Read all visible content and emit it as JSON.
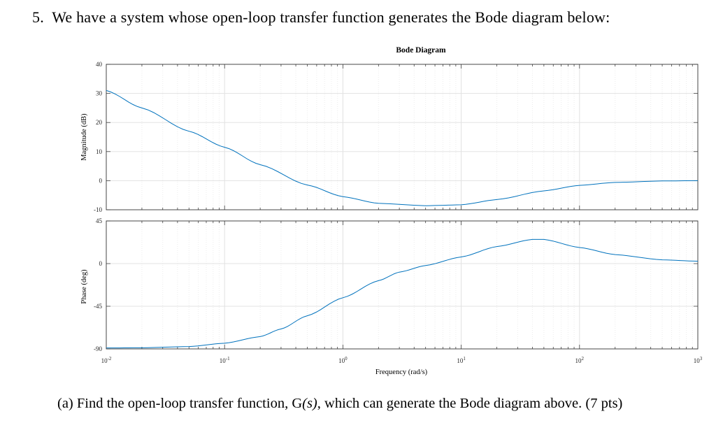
{
  "question": {
    "number": "5.",
    "text": "We have a system whose open-loop transfer function generates the Bode diagram below:"
  },
  "part_a": {
    "label": "(a)",
    "text_before": "Find the open-loop transfer function, G",
    "func_arg": "(s)",
    "text_after": ", which can generate the Bode diagram above.",
    "points": "(7 pts)"
  },
  "chart_data": {
    "type": "line",
    "title": "Bode Diagram",
    "xlabel": "Frequency (rad/s)",
    "xscale": "log",
    "xlim": [
      0.01,
      1000
    ],
    "x_tick_labels": [
      {
        "base": "10",
        "exp": "-2"
      },
      {
        "base": "10",
        "exp": "-1"
      },
      {
        "base": "10",
        "exp": "0"
      },
      {
        "base": "10",
        "exp": "1"
      },
      {
        "base": "10",
        "exp": "2"
      },
      {
        "base": "10",
        "exp": "3"
      }
    ],
    "grid": true,
    "line_color": "#0072BD",
    "magnitude": {
      "ylabel": "Magnitude (dB)",
      "ylim": [
        -10,
        40
      ],
      "yticks": [
        "40",
        "30",
        "20",
        "10",
        "0",
        "-10"
      ],
      "x": [
        0.01,
        0.02,
        0.05,
        0.1,
        0.2,
        0.5,
        1,
        2,
        5,
        10,
        20,
        50,
        100,
        200,
        500,
        1000
      ],
      "y": [
        31,
        25,
        17,
        11.5,
        5.5,
        -1.5,
        -5.5,
        -7.8,
        -8.6,
        -8.3,
        -6.5,
        -3.5,
        -1.6,
        -0.6,
        -0.1,
        0
      ]
    },
    "phase": {
      "ylabel": "Phase (deg)",
      "ylim": [
        -90,
        45
      ],
      "yticks": [
        "45",
        "0",
        "-45",
        "-90"
      ],
      "x": [
        0.01,
        0.02,
        0.05,
        0.1,
        0.2,
        0.3,
        0.5,
        1,
        2,
        3,
        5,
        10,
        20,
        40,
        50,
        100,
        200,
        500,
        1000
      ],
      "y": [
        -89,
        -88.8,
        -87.5,
        -84,
        -77,
        -69,
        -55,
        -36,
        -18,
        -9,
        -2,
        7,
        18,
        25.5,
        25.5,
        17,
        9.5,
        4,
        2.5
      ]
    }
  }
}
